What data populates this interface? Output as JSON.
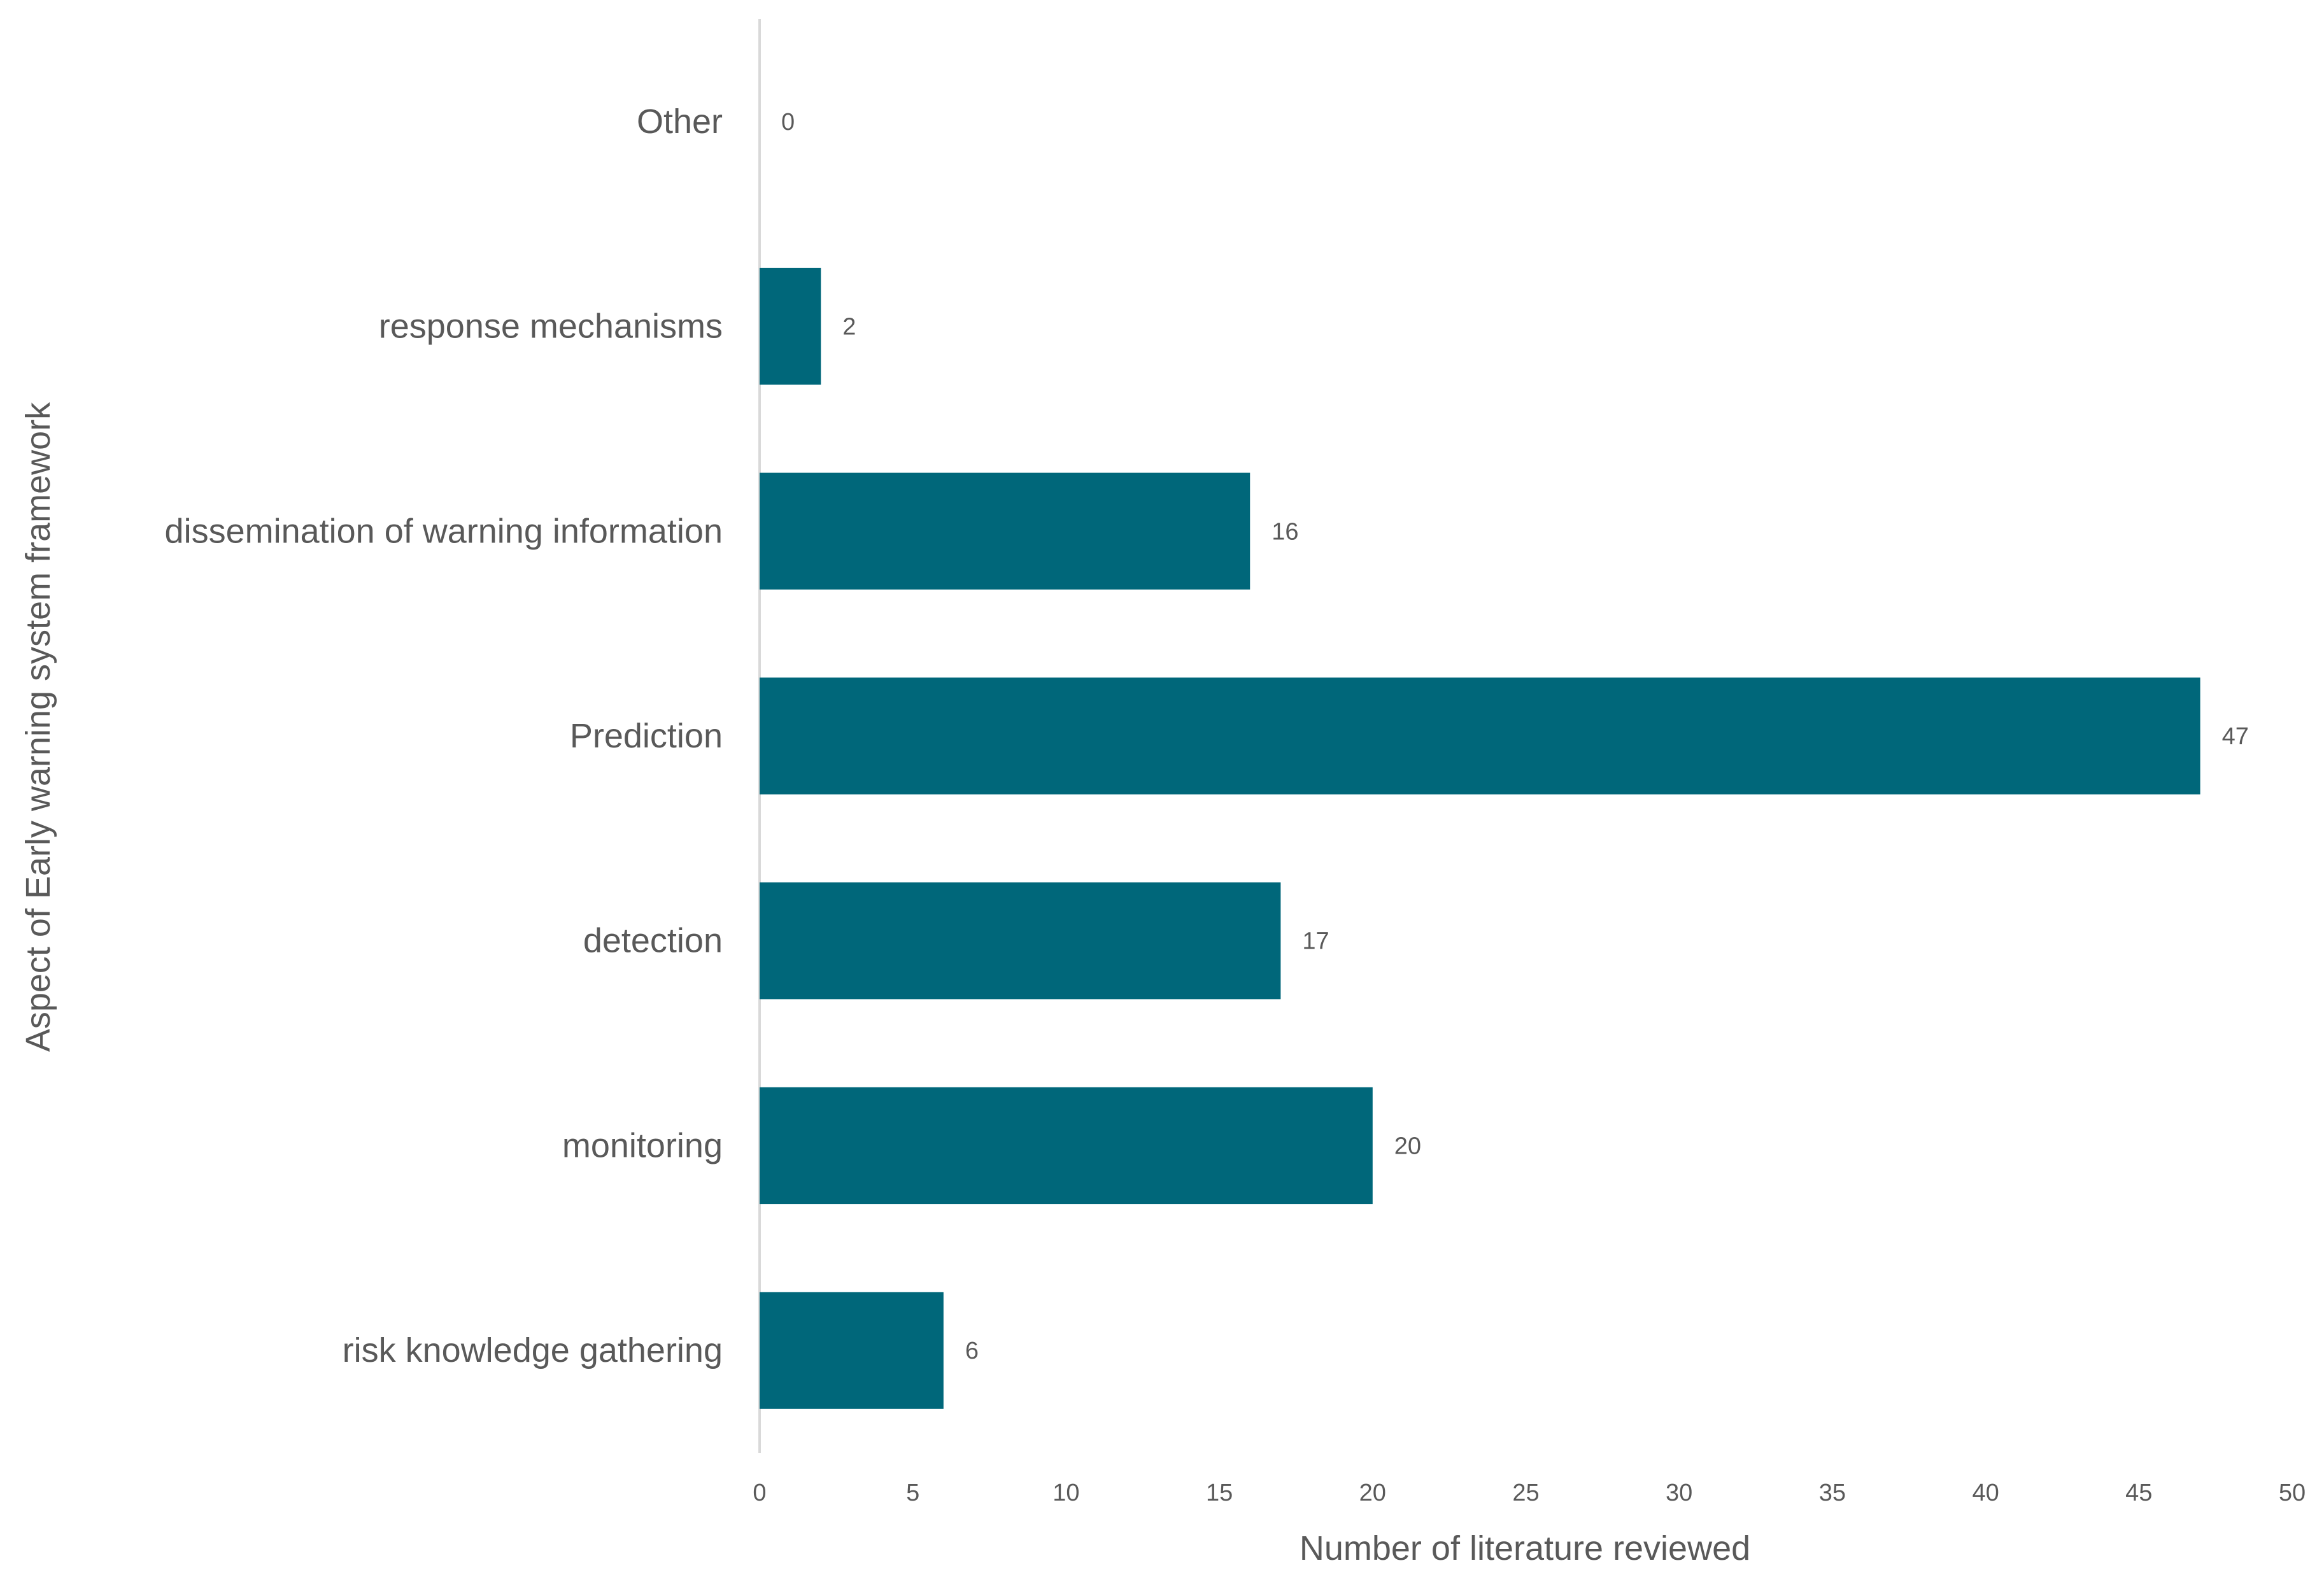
{
  "chart_data": {
    "type": "bar",
    "orientation": "horizontal",
    "categories": [
      "risk knowledge gathering",
      "monitoring",
      "detection",
      "Prediction",
      "dissemination of warning information",
      "response mechanisms",
      "Other"
    ],
    "values": [
      6,
      20,
      17,
      47,
      16,
      2,
      0
    ],
    "data_labels": [
      "6",
      "20",
      "17",
      "47",
      "16",
      "2",
      "0"
    ],
    "xlabel": "Number of literature reviewed",
    "ylabel": "Aspect of Early warning system framework",
    "xlim": [
      0,
      50
    ],
    "xticks": [
      0,
      5,
      10,
      15,
      20,
      25,
      30,
      35,
      40,
      45,
      50
    ],
    "grid": false,
    "legend": "none",
    "colors": {
      "bar": "#00677A",
      "axis": "#D9D9D9",
      "text": "#595959"
    }
  }
}
